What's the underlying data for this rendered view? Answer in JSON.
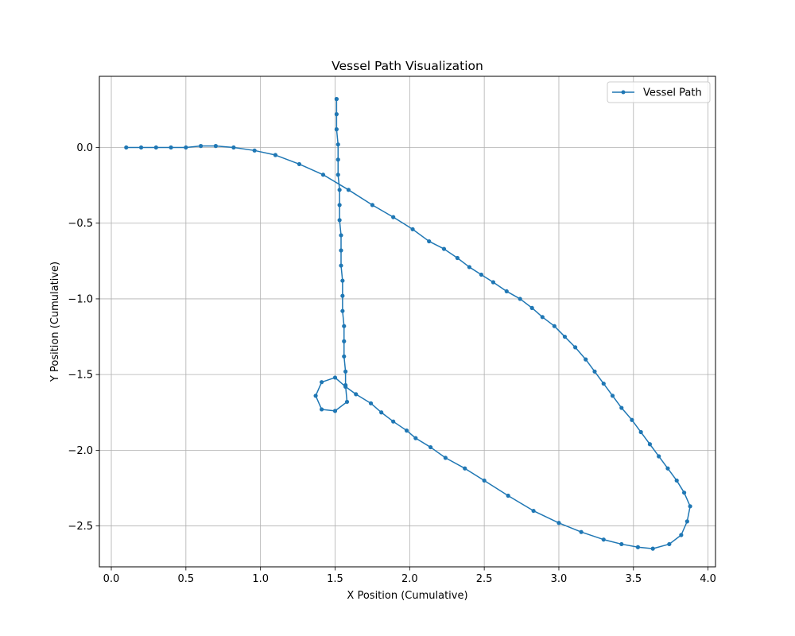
{
  "chart_data": {
    "type": "line",
    "title": "Vessel Path Visualization",
    "xlabel": "X Position (Cumulative)",
    "ylabel": "Y Position (Cumulative)",
    "xlim": [
      -0.08,
      4.05
    ],
    "ylim": [
      -2.77,
      0.47
    ],
    "xticks": [
      0.0,
      0.5,
      1.0,
      1.5,
      2.0,
      2.5,
      3.0,
      3.5,
      4.0
    ],
    "xtick_labels": [
      "0.0",
      "0.5",
      "1.0",
      "1.5",
      "2.0",
      "2.5",
      "3.0",
      "3.5",
      "4.0"
    ],
    "yticks": [
      0.0,
      -0.5,
      -1.0,
      -1.5,
      -2.0,
      -2.5
    ],
    "ytick_labels": [
      "0.0",
      "−0.5",
      "−1.0",
      "−1.5",
      "−2.0",
      "−2.5"
    ],
    "grid": true,
    "legend_position": "top-right",
    "series": [
      {
        "name": "Vessel Path",
        "color": "#1f77b4",
        "marker": "circle",
        "x": [
          0.1,
          0.2,
          0.3,
          0.4,
          0.5,
          0.6,
          0.7,
          0.82,
          0.96,
          1.1,
          1.26,
          1.42,
          1.59,
          1.75,
          1.89,
          2.02,
          2.13,
          2.23,
          2.32,
          2.4,
          2.48,
          2.56,
          2.65,
          2.74,
          2.82,
          2.89,
          2.97,
          3.04,
          3.11,
          3.18,
          3.24,
          3.3,
          3.36,
          3.42,
          3.49,
          3.55,
          3.61,
          3.67,
          3.73,
          3.79,
          3.84,
          3.88,
          3.86,
          3.82,
          3.74,
          3.63,
          3.53,
          3.42,
          3.3,
          3.15,
          3.0,
          2.83,
          2.66,
          2.5,
          2.37,
          2.24,
          2.14,
          2.04,
          1.98,
          1.89,
          1.81,
          1.74,
          1.64,
          1.57,
          1.5,
          1.41,
          1.37,
          1.41,
          1.5,
          1.58,
          1.57,
          1.57,
          1.56,
          1.56,
          1.56,
          1.55,
          1.55,
          1.55,
          1.54,
          1.54,
          1.54,
          1.53,
          1.53,
          1.53,
          1.52,
          1.52,
          1.52,
          1.51,
          1.51,
          1.51,
          1.51
        ],
        "y": [
          0.0,
          0.0,
          0.0,
          0.0,
          0.0,
          0.01,
          0.01,
          0.0,
          -0.02,
          -0.05,
          -0.11,
          -0.18,
          -0.28,
          -0.38,
          -0.46,
          -0.54,
          -0.62,
          -0.67,
          -0.73,
          -0.79,
          -0.84,
          -0.89,
          -0.95,
          -1.0,
          -1.06,
          -1.12,
          -1.18,
          -1.25,
          -1.32,
          -1.4,
          -1.48,
          -1.56,
          -1.64,
          -1.72,
          -1.8,
          -1.88,
          -1.96,
          -2.04,
          -2.12,
          -2.2,
          -2.28,
          -2.37,
          -2.47,
          -2.56,
          -2.62,
          -2.65,
          -2.64,
          -2.62,
          -2.59,
          -2.54,
          -2.48,
          -2.4,
          -2.3,
          -2.2,
          -2.12,
          -2.05,
          -1.98,
          -1.92,
          -1.87,
          -1.81,
          -1.75,
          -1.69,
          -1.63,
          -1.58,
          -1.52,
          -1.55,
          -1.64,
          -1.73,
          -1.74,
          -1.68,
          -1.57,
          -1.48,
          -1.38,
          -1.28,
          -1.18,
          -1.08,
          -0.98,
          -0.88,
          -0.78,
          -0.68,
          -0.58,
          -0.48,
          -0.38,
          -0.28,
          -0.18,
          -0.08,
          0.02,
          0.12,
          0.22,
          0.32,
          0.32
        ]
      }
    ]
  }
}
